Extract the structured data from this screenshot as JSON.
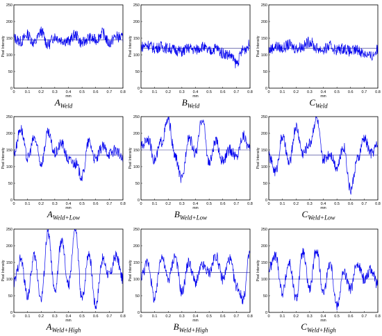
{
  "chart_data": [
    {
      "type": "line",
      "caption_main": "A",
      "caption_sub": "Weld",
      "ylabel": "Pixel Intensity",
      "xlabel": "mm",
      "xlim": [
        0,
        0.8
      ],
      "ylim": [
        0,
        250
      ],
      "x_ticks": [
        "0",
        "0.1",
        "0.2",
        "0.3",
        "0.4",
        "0.5",
        "0.6",
        "0.7",
        "0.8"
      ],
      "y_ticks": [
        "0",
        "50",
        "100",
        "150",
        "200",
        "250"
      ],
      "mean": 145,
      "series": [
        {
          "x": [
            0,
            0.05,
            0.1,
            0.15,
            0.2,
            0.25,
            0.3,
            0.35,
            0.4,
            0.45,
            0.5,
            0.55,
            0.6,
            0.65,
            0.7,
            0.75,
            0.8
          ],
          "values": [
            150,
            140,
            160,
            135,
            170,
            130,
            155,
            145,
            140,
            160,
            135,
            150,
            145,
            165,
            135,
            155,
            150
          ]
        }
      ]
    },
    {
      "type": "line",
      "caption_main": "B",
      "caption_sub": "Weld",
      "ylabel": "Pixel Intensity",
      "xlabel": "mm",
      "xlim": [
        0,
        0.8
      ],
      "ylim": [
        0,
        250
      ],
      "x_ticks": [
        "0",
        "0.1",
        "0.2",
        "0.3",
        "0.4",
        "0.5",
        "0.6",
        "0.7",
        "0.8"
      ],
      "y_ticks": [
        "0",
        "50",
        "100",
        "150",
        "200",
        "250"
      ],
      "mean": 120,
      "series": [
        {
          "x": [
            0,
            0.05,
            0.1,
            0.15,
            0.2,
            0.25,
            0.3,
            0.35,
            0.4,
            0.45,
            0.5,
            0.55,
            0.6,
            0.65,
            0.7,
            0.75,
            0.8
          ],
          "values": [
            125,
            130,
            120,
            125,
            120,
            115,
            110,
            120,
            115,
            125,
            110,
            120,
            105,
            100,
            75,
            115,
            130
          ]
        }
      ]
    },
    {
      "type": "line",
      "caption_main": "C",
      "caption_sub": "Weld",
      "ylabel": "Pixel Intensity",
      "xlabel": "mm",
      "xlim": [
        0,
        0.8
      ],
      "ylim": [
        0,
        250
      ],
      "x_ticks": [
        "0",
        "0.1",
        "0.2",
        "0.3",
        "0.4",
        "0.5",
        "0.6",
        "0.7",
        "0.8"
      ],
      "y_ticks": [
        "0",
        "50",
        "100",
        "150",
        "200",
        "250"
      ],
      "mean": 120,
      "series": [
        {
          "x": [
            0,
            0.05,
            0.1,
            0.15,
            0.2,
            0.25,
            0.3,
            0.35,
            0.4,
            0.45,
            0.5,
            0.55,
            0.6,
            0.65,
            0.7,
            0.75,
            0.8
          ],
          "values": [
            115,
            125,
            120,
            130,
            120,
            125,
            140,
            120,
            115,
            125,
            115,
            120,
            110,
            115,
            105,
            95,
            115
          ]
        }
      ]
    },
    {
      "type": "line",
      "caption_main": "A",
      "caption_sub": "Weld+Low",
      "ylabel": "Pixel Intensity",
      "xlabel": "mm",
      "xlim": [
        0,
        0.8
      ],
      "ylim": [
        0,
        250
      ],
      "x_ticks": [
        "0",
        "0.1",
        "0.2",
        "0.3",
        "0.4",
        "0.5",
        "0.6",
        "0.7",
        "0.8"
      ],
      "y_ticks": [
        "0",
        "50",
        "100",
        "150",
        "200",
        "250"
      ],
      "mean": 135,
      "series": [
        {
          "x": [
            0,
            0.05,
            0.1,
            0.15,
            0.2,
            0.25,
            0.3,
            0.35,
            0.4,
            0.45,
            0.5,
            0.55,
            0.6,
            0.65,
            0.7,
            0.75,
            0.8
          ],
          "values": [
            140,
            215,
            125,
            185,
            110,
            200,
            140,
            170,
            120,
            110,
            70,
            175,
            120,
            160,
            140,
            150,
            120
          ]
        }
      ]
    },
    {
      "type": "line",
      "caption_main": "B",
      "caption_sub": "Weld+Low",
      "ylabel": "Pixel Intensity",
      "xlabel": "mm",
      "xlim": [
        0,
        0.8
      ],
      "ylim": [
        0,
        250
      ],
      "x_ticks": [
        "0",
        "0.1",
        "0.2",
        "0.3",
        "0.4",
        "0.5",
        "0.6",
        "0.7",
        "0.8"
      ],
      "y_ticks": [
        "0",
        "50",
        "100",
        "150",
        "200",
        "250"
      ],
      "mean": 150,
      "series": [
        {
          "x": [
            0,
            0.05,
            0.1,
            0.15,
            0.2,
            0.25,
            0.3,
            0.35,
            0.4,
            0.45,
            0.5,
            0.55,
            0.6,
            0.65,
            0.7,
            0.75,
            0.8
          ],
          "values": [
            160,
            185,
            120,
            175,
            240,
            130,
            60,
            190,
            140,
            245,
            110,
            175,
            115,
            150,
            130,
            195,
            150
          ]
        }
      ]
    },
    {
      "type": "line",
      "caption_main": "C",
      "caption_sub": "Weld+Low",
      "ylabel": "Pixel Intensity",
      "xlabel": "mm",
      "xlim": [
        0,
        0.8
      ],
      "ylim": [
        0,
        250
      ],
      "x_ticks": [
        "0",
        "0.1",
        "0.2",
        "0.3",
        "0.4",
        "0.5",
        "0.6",
        "0.7",
        "0.8"
      ],
      "y_ticks": [
        "0",
        "50",
        "100",
        "150",
        "200",
        "250"
      ],
      "mean": 135,
      "series": [
        {
          "x": [
            0,
            0.05,
            0.1,
            0.15,
            0.2,
            0.25,
            0.3,
            0.35,
            0.4,
            0.45,
            0.5,
            0.55,
            0.6,
            0.65,
            0.7,
            0.75,
            0.8
          ],
          "values": [
            130,
            85,
            190,
            110,
            220,
            140,
            170,
            245,
            120,
            140,
            100,
            160,
            30,
            120,
            185,
            140,
            165
          ]
        }
      ]
    },
    {
      "type": "line",
      "caption_main": "A",
      "caption_sub": "Weld+High",
      "ylabel": "Pixel Intensity",
      "xlabel": "mm",
      "xlim": [
        0,
        0.8
      ],
      "ylim": [
        0,
        250
      ],
      "x_ticks": [
        "0",
        "0.1",
        "0.2",
        "0.3",
        "0.4",
        "0.5",
        "0.6",
        "0.7",
        "0.8"
      ],
      "y_ticks": [
        "0",
        "50",
        "100",
        "150",
        "200",
        "250"
      ],
      "mean": 115,
      "series": [
        {
          "x": [
            0,
            0.05,
            0.1,
            0.15,
            0.2,
            0.25,
            0.3,
            0.35,
            0.4,
            0.45,
            0.5,
            0.55,
            0.6,
            0.65,
            0.7,
            0.75,
            0.8
          ],
          "values": [
            90,
            160,
            50,
            170,
            40,
            240,
            60,
            215,
            80,
            250,
            40,
            180,
            20,
            160,
            110,
            170,
            100
          ]
        }
      ]
    },
    {
      "type": "line",
      "caption_main": "B",
      "caption_sub": "Weld+High",
      "ylabel": "Pixel Intensity",
      "xlabel": "mm",
      "xlim": [
        0,
        0.8
      ],
      "ylim": [
        0,
        250
      ],
      "x_ticks": [
        "0",
        "0.1",
        "0.2",
        "0.3",
        "0.4",
        "0.5",
        "0.6",
        "0.7",
        "0.8"
      ],
      "y_ticks": [
        "0",
        "50",
        "100",
        "150",
        "200",
        "250"
      ],
      "mean": 120,
      "series": [
        {
          "x": [
            0,
            0.05,
            0.1,
            0.15,
            0.2,
            0.25,
            0.3,
            0.35,
            0.4,
            0.45,
            0.5,
            0.55,
            0.6,
            0.65,
            0.7,
            0.75,
            0.8
          ],
          "values": [
            110,
            150,
            40,
            170,
            100,
            170,
            60,
            150,
            90,
            140,
            120,
            170,
            100,
            160,
            80,
            40,
            180
          ]
        }
      ]
    },
    {
      "type": "line",
      "caption_main": "C",
      "caption_sub": "Weld+High",
      "ylabel": "Pixel Intensity",
      "xlabel": "mm",
      "xlim": [
        0,
        0.8
      ],
      "ylim": [
        0,
        250
      ],
      "x_ticks": [
        "0",
        "0.1",
        "0.2",
        "0.3",
        "0.4",
        "0.5",
        "0.6",
        "0.7",
        "0.8"
      ],
      "y_ticks": [
        "0",
        "50",
        "100",
        "150",
        "200",
        "250"
      ],
      "mean": 100,
      "series": [
        {
          "x": [
            0,
            0.05,
            0.1,
            0.15,
            0.2,
            0.25,
            0.3,
            0.35,
            0.4,
            0.45,
            0.5,
            0.55,
            0.6,
            0.65,
            0.7,
            0.75,
            0.8
          ],
          "values": [
            130,
            170,
            60,
            150,
            40,
            180,
            70,
            190,
            60,
            150,
            20,
            120,
            70,
            150,
            100,
            130,
            80
          ]
        }
      ]
    }
  ],
  "colors": {
    "line": "#0000ee",
    "mean_line": "#2a2a8a",
    "axis": "#000000"
  }
}
